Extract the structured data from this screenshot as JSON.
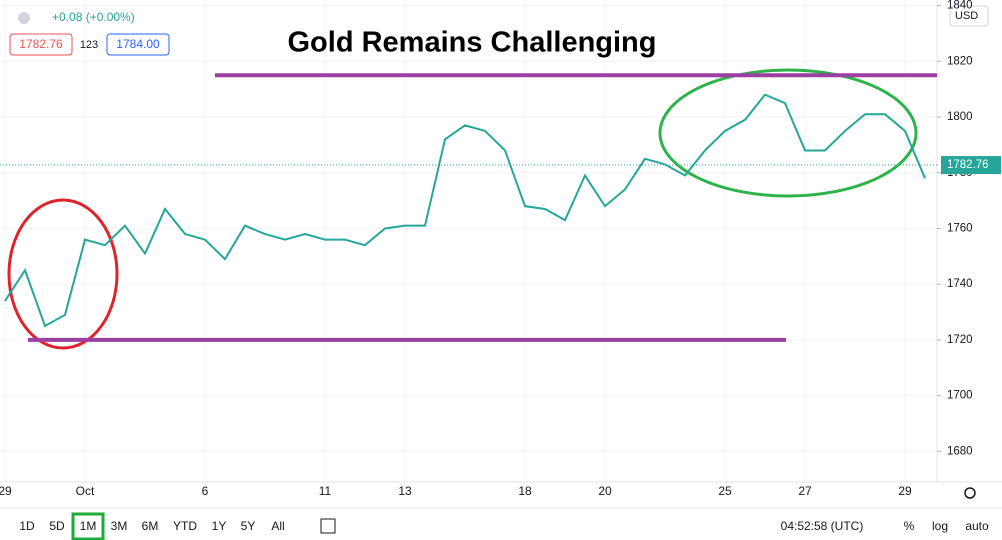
{
  "chart_data": {
    "type": "line",
    "title": "Gold Remains Challenging",
    "change": "+0.08 (+0.00%)",
    "bid": 1782.76,
    "spread": "123",
    "ask": "1784.00",
    "currency": "USD",
    "categories": [
      "29",
      null,
      null,
      null,
      "Oct",
      null,
      null,
      null,
      null,
      null,
      "6",
      null,
      null,
      null,
      null,
      null,
      "11",
      null,
      null,
      null,
      "13",
      null,
      null,
      null,
      null,
      null,
      "18",
      null,
      null,
      null,
      "20",
      null,
      null,
      null,
      null,
      null,
      "25",
      null,
      null,
      null,
      "27",
      null,
      null,
      null,
      null,
      "29",
      null
    ],
    "values": [
      1734,
      1745,
      1725,
      1729,
      1756,
      1754,
      1761,
      1751,
      1767,
      1758,
      1756,
      1749,
      1761,
      1758,
      1756,
      1758,
      1756,
      1756,
      1754,
      1760,
      1761,
      1761,
      1792,
      1797,
      1795,
      1788,
      1768,
      1767,
      1763,
      1779,
      1768,
      1774,
      1785,
      1783,
      1779,
      1788,
      1795,
      1799,
      1808,
      1805,
      1788,
      1788,
      1795,
      1801,
      1801,
      1795,
      1778
    ],
    "color": "#26a69a",
    "last_value": 1782.76,
    "ylim": [
      1669,
      1842
    ],
    "yticks": [
      1680,
      1700,
      1720,
      1740,
      1760,
      1780,
      1800,
      1820,
      1840
    ],
    "grid": true,
    "levels": [
      {
        "value": 1815,
        "color": "#9c3fa3"
      },
      {
        "value": 1720,
        "color": "#9c3fa3"
      }
    ]
  },
  "toolbar": {
    "ranges": [
      "1D",
      "5D",
      "1M",
      "3M",
      "6M",
      "YTD",
      "1Y",
      "5Y",
      "All"
    ],
    "active": "1M",
    "time": "04:52:58 (UTC)",
    "options": [
      "%",
      "log",
      "auto"
    ]
  }
}
